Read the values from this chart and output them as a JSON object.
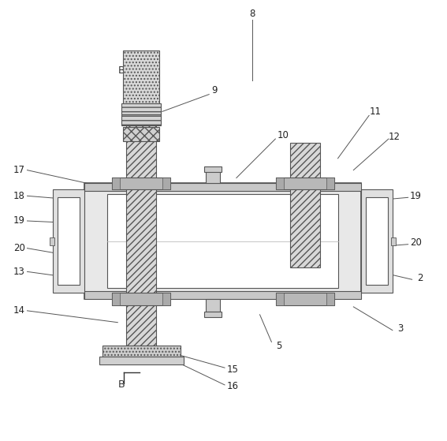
{
  "bg_color": "#ffffff",
  "lc": "#555555",
  "figsize": [
    5.67,
    5.59
  ],
  "dpi": 100
}
